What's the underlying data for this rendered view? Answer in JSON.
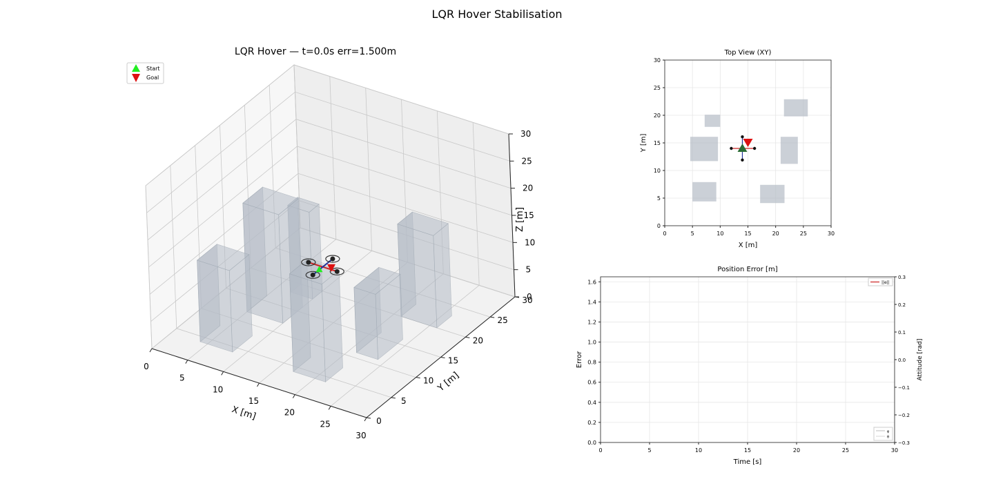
{
  "figure": {
    "suptitle": "LQR Hover Stabilisation"
  },
  "chart_data": [
    {
      "type": "scatter",
      "title": "LQR Hover — t=0.0s  err=1.500m",
      "xlabel": "X [m]",
      "ylabel": "Y [m]",
      "zlabel": "Z [m]",
      "xlim": [
        0,
        30
      ],
      "ylim": [
        0,
        30
      ],
      "zlim": [
        0,
        30
      ],
      "xticks": [
        "0",
        "5",
        "10",
        "15",
        "20",
        "25",
        "30"
      ],
      "yticks": [
        "0",
        "5",
        "10",
        "15",
        "20",
        "25",
        "30"
      ],
      "zticks": [
        "0",
        "5",
        "10",
        "15",
        "20",
        "25",
        "30"
      ],
      "grid": true,
      "legend": {
        "placement": "upper-left",
        "entries": [
          "Start",
          "Goal"
        ]
      },
      "legend_colors": [
        "#22ee22",
        "#dd1111"
      ],
      "start": [
        14,
        14,
        10
      ],
      "goal": [
        15,
        15,
        10
      ],
      "drone": {
        "center": [
          14.3,
          14.3,
          10.5
        ],
        "arm": 2
      },
      "obstacles": [
        {
          "x": [
            5,
            10
          ],
          "y": [
            12,
            16
          ],
          "z": [
            0,
            20
          ]
        },
        {
          "x": [
            4,
            8.5
          ],
          "y": [
            4,
            8
          ],
          "z": [
            0,
            15
          ]
        },
        {
          "x": [
            7,
            10
          ],
          "y": [
            18,
            20
          ],
          "z": [
            0,
            16
          ]
        },
        {
          "x": [
            17,
            21.5
          ],
          "y": [
            4,
            7.5
          ],
          "z": [
            0,
            18
          ]
        },
        {
          "x": [
            21,
            24
          ],
          "y": [
            11,
            16
          ],
          "z": [
            0,
            12
          ]
        },
        {
          "x": [
            21,
            26
          ],
          "y": [
            20,
            23
          ],
          "z": [
            0,
            17
          ]
        }
      ],
      "obstacle_color": "#b5bcc6"
    },
    {
      "type": "scatter",
      "title": "Top View (XY)",
      "xlabel": "X [m]",
      "ylabel": "Y [m]",
      "xlim": [
        0,
        30
      ],
      "ylim": [
        0,
        30
      ],
      "xticks": [
        "0",
        "5",
        "10",
        "15",
        "20",
        "25",
        "30"
      ],
      "yticks": [
        "0",
        "5",
        "10",
        "15",
        "20",
        "25",
        "30"
      ],
      "grid": true,
      "obstacles": [
        {
          "x": [
            4.6,
            9.6
          ],
          "y": [
            11.7,
            16.1
          ]
        },
        {
          "x": [
            5.0,
            9.3
          ],
          "y": [
            4.4,
            7.9
          ]
        },
        {
          "x": [
            7.2,
            10.0
          ],
          "y": [
            17.9,
            20.1
          ]
        },
        {
          "x": [
            17.2,
            21.6
          ],
          "y": [
            4.1,
            7.4
          ]
        },
        {
          "x": [
            20.9,
            24.0
          ],
          "y": [
            11.2,
            16.1
          ]
        },
        {
          "x": [
            21.5,
            25.8
          ],
          "y": [
            19.8,
            22.9
          ]
        }
      ],
      "start": [
        14,
        14
      ],
      "goal": [
        15,
        15
      ],
      "drone_arms": [
        [
          12,
          14
        ],
        [
          16.2,
          14
        ],
        [
          14,
          11.9
        ],
        [
          14,
          16.1
        ]
      ],
      "start_color": "#2a6b34",
      "goal_color": "#dd1111"
    },
    {
      "type": "line",
      "title": "Position Error [m]",
      "xlabel": "Time [s]",
      "ylabel": "Error",
      "y2label": "Attitude [rad]",
      "xlim": [
        0,
        30
      ],
      "ylim": [
        0,
        1.65
      ],
      "y2lim": [
        -0.3,
        0.3
      ],
      "xticks": [
        "0",
        "5",
        "10",
        "15",
        "20",
        "25",
        "30"
      ],
      "yticks": [
        "0.0",
        "0.2",
        "0.4",
        "0.6",
        "0.8",
        "1.0",
        "1.2",
        "1.4",
        "1.6"
      ],
      "y2ticks": [
        "−0.3",
        "−0.2",
        "−0.1",
        "0.0",
        "0.1",
        "0.2",
        "0.3"
      ],
      "grid": true,
      "series": [
        {
          "name": "||e||",
          "x": [],
          "y": [],
          "color": "#cc2222"
        },
        {
          "name": "φ",
          "x": [],
          "y": [],
          "color": "#aaaaaa"
        },
        {
          "name": "θ",
          "x": [],
          "y": [],
          "color": "#cccccc"
        }
      ],
      "legend": {
        "primary": "upper-right",
        "secondary": "lower-right"
      }
    }
  ]
}
